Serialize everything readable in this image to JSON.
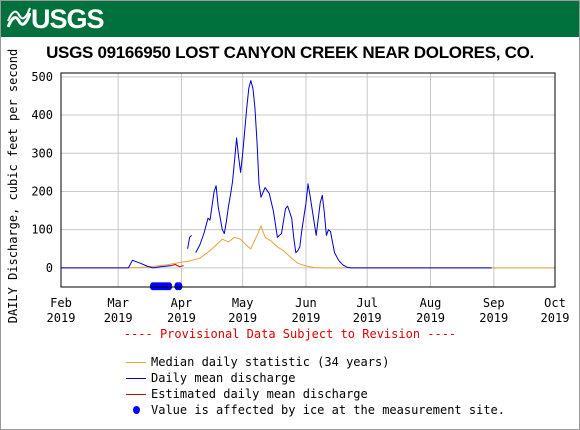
{
  "logo": {
    "text": "USGS"
  },
  "chart_data": {
    "type": "line",
    "title": "USGS 09166950 LOST CANYON CREEK NEAR DOLORES, CO.",
    "ylabel": "DAILY Discharge, cubic feet per second",
    "xlabel": "",
    "ylim": [
      -50,
      510
    ],
    "xlim": [
      "2019-02-01",
      "2019-10-01"
    ],
    "grid": true,
    "yticks": [
      0,
      100,
      200,
      300,
      400,
      500
    ],
    "xticks": [
      {
        "date": "2019-02-01",
        "line1": "Feb",
        "line2": "2019"
      },
      {
        "date": "2019-03-01",
        "line1": "Mar",
        "line2": "2019"
      },
      {
        "date": "2019-04-01",
        "line1": "Apr",
        "line2": "2019"
      },
      {
        "date": "2019-05-01",
        "line1": "May",
        "line2": "2019"
      },
      {
        "date": "2019-06-01",
        "line1": "Jun",
        "line2": "2019"
      },
      {
        "date": "2019-07-01",
        "line1": "Jul",
        "line2": "2019"
      },
      {
        "date": "2019-08-01",
        "line1": "Aug",
        "line2": "2019"
      },
      {
        "date": "2019-09-01",
        "line1": "Sep",
        "line2": "2019"
      },
      {
        "date": "2019-10-01",
        "line1": "Oct",
        "line2": "2019"
      }
    ],
    "series": [
      {
        "name": "Median daily statistic (34 years)",
        "color": "#e8a33c",
        "points": [
          [
            "2019-02-01",
            0
          ],
          [
            "2019-03-05",
            0
          ],
          [
            "2019-03-15",
            2
          ],
          [
            "2019-03-25",
            8
          ],
          [
            "2019-04-01",
            15
          ],
          [
            "2019-04-05",
            18
          ],
          [
            "2019-04-10",
            25
          ],
          [
            "2019-04-15",
            45
          ],
          [
            "2019-04-18",
            60
          ],
          [
            "2019-04-21",
            75
          ],
          [
            "2019-04-24",
            68
          ],
          [
            "2019-04-27",
            80
          ],
          [
            "2019-04-30",
            75
          ],
          [
            "2019-05-03",
            58
          ],
          [
            "2019-05-05",
            50
          ],
          [
            "2019-05-08",
            85
          ],
          [
            "2019-05-10",
            110
          ],
          [
            "2019-05-12",
            80
          ],
          [
            "2019-05-15",
            70
          ],
          [
            "2019-05-18",
            55
          ],
          [
            "2019-05-21",
            45
          ],
          [
            "2019-05-25",
            25
          ],
          [
            "2019-05-28",
            12
          ],
          [
            "2019-06-01",
            5
          ],
          [
            "2019-06-05",
            1
          ],
          [
            "2019-06-10",
            0
          ],
          [
            "2019-10-01",
            0
          ]
        ]
      },
      {
        "name": "Daily mean discharge",
        "color": "#0000cc",
        "segments": [
          [
            [
              "2019-02-01",
              0
            ],
            [
              "2019-03-06",
              0
            ],
            [
              "2019-03-08",
              20
            ],
            [
              "2019-03-12",
              12
            ],
            [
              "2019-03-15",
              5
            ],
            [
              "2019-03-18",
              0
            ],
            [
              "2019-03-22",
              3
            ],
            [
              "2019-03-27",
              6
            ]
          ],
          [
            [
              "2019-04-04",
              50
            ],
            [
              "2019-04-05",
              80
            ],
            [
              "2019-04-06",
              85
            ]
          ],
          [
            [
              "2019-04-08",
              40
            ],
            [
              "2019-04-10",
              60
            ],
            [
              "2019-04-12",
              90
            ],
            [
              "2019-04-14",
              130
            ],
            [
              "2019-04-15",
              125
            ],
            [
              "2019-04-17",
              200
            ],
            [
              "2019-04-18",
              215
            ],
            [
              "2019-04-19",
              160
            ],
            [
              "2019-04-21",
              100
            ],
            [
              "2019-04-22",
              90
            ],
            [
              "2019-04-23",
              120
            ],
            [
              "2019-04-24",
              160
            ],
            [
              "2019-04-25",
              190
            ],
            [
              "2019-04-26",
              225
            ],
            [
              "2019-04-27",
              280
            ],
            [
              "2019-04-28",
              340
            ],
            [
              "2019-04-29",
              290
            ],
            [
              "2019-04-30",
              250
            ],
            [
              "2019-05-01",
              300
            ],
            [
              "2019-05-03",
              420
            ],
            [
              "2019-05-04",
              470
            ],
            [
              "2019-05-05",
              490
            ],
            [
              "2019-05-06",
              470
            ],
            [
              "2019-05-07",
              420
            ],
            [
              "2019-05-08",
              330
            ],
            [
              "2019-05-09",
              220
            ],
            [
              "2019-05-10",
              185
            ],
            [
              "2019-05-12",
              210
            ],
            [
              "2019-05-14",
              195
            ],
            [
              "2019-05-16",
              150
            ],
            [
              "2019-05-18",
              80
            ],
            [
              "2019-05-20",
              90
            ],
            [
              "2019-05-22",
              155
            ],
            [
              "2019-05-23",
              162
            ],
            [
              "2019-05-25",
              130
            ],
            [
              "2019-05-26",
              80
            ],
            [
              "2019-05-27",
              40
            ],
            [
              "2019-05-28",
              45
            ],
            [
              "2019-05-29",
              55
            ],
            [
              "2019-05-30",
              100
            ],
            [
              "2019-06-01",
              170
            ],
            [
              "2019-06-02",
              220
            ],
            [
              "2019-06-03",
              190
            ],
            [
              "2019-06-05",
              120
            ],
            [
              "2019-06-06",
              85
            ],
            [
              "2019-06-08",
              170
            ],
            [
              "2019-06-09",
              190
            ],
            [
              "2019-06-10",
              145
            ],
            [
              "2019-06-11",
              85
            ],
            [
              "2019-06-12",
              100
            ],
            [
              "2019-06-13",
              95
            ],
            [
              "2019-06-15",
              40
            ],
            [
              "2019-06-17",
              20
            ],
            [
              "2019-06-19",
              8
            ],
            [
              "2019-06-21",
              2
            ],
            [
              "2019-06-23",
              0
            ],
            [
              "2019-08-31",
              0
            ]
          ]
        ]
      },
      {
        "name": "Estimated daily mean discharge",
        "color": "#cc0000",
        "points": [
          [
            "2019-03-27",
            6
          ],
          [
            "2019-03-29",
            9
          ],
          [
            "2019-03-31",
            3
          ],
          [
            "2019-04-02",
            6
          ]
        ]
      }
    ],
    "ice_markers": {
      "name": "Value is affected by ice at the measurement site.",
      "color": "#0000ff",
      "dates": [
        "2019-03-18",
        "2019-03-19",
        "2019-03-20",
        "2019-03-21",
        "2019-03-22",
        "2019-03-23",
        "2019-03-24",
        "2019-03-25",
        "2019-03-26",
        "2019-03-30",
        "2019-03-31"
      ],
      "y": -48
    },
    "annotation": "---- Provisional Data Subject to Revision ----"
  }
}
